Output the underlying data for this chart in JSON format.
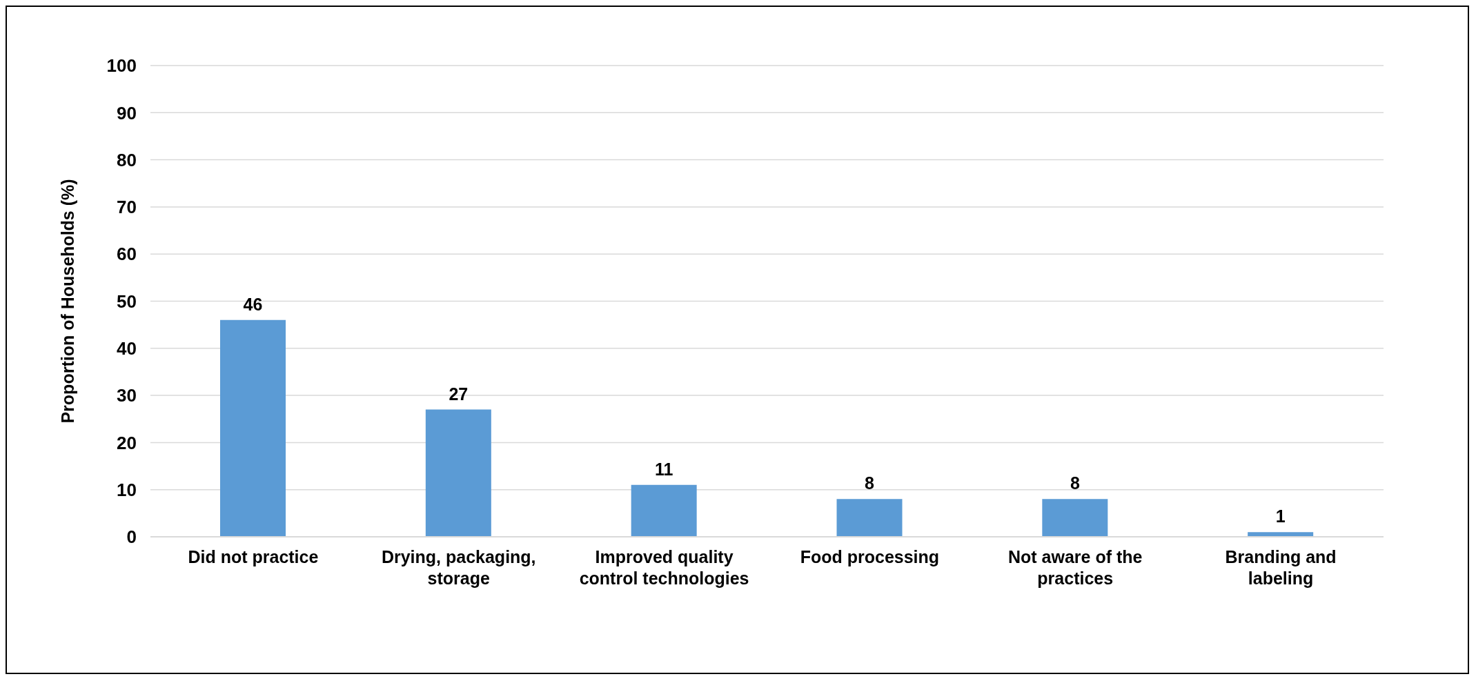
{
  "chart_data": {
    "type": "bar",
    "ylabel": "Proportion of Households (%)",
    "categories": [
      "Did not practice",
      "Drying, packaging, storage",
      "Improved quality control technologies",
      "Food processing",
      "Not aware of the practices",
      "Branding and labeling"
    ],
    "values": [
      46,
      27,
      11,
      8,
      8,
      1
    ],
    "color": "#5b9bd5",
    "data_labels": true,
    "ylim": [
      0,
      100
    ],
    "yticks": [
      0,
      10,
      20,
      30,
      40,
      50,
      60,
      70,
      80,
      90,
      100
    ],
    "grid": "y"
  }
}
